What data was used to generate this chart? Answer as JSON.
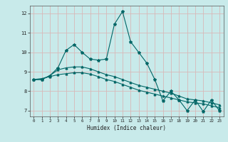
{
  "title": "",
  "xlabel": "Humidex (Indice chaleur)",
  "xlim": [
    -0.5,
    23.5
  ],
  "ylim": [
    6.7,
    12.4
  ],
  "yticks": [
    7,
    8,
    9,
    10,
    11,
    12
  ],
  "xticks": [
    0,
    1,
    2,
    3,
    4,
    5,
    6,
    7,
    8,
    9,
    10,
    11,
    12,
    13,
    14,
    15,
    16,
    17,
    18,
    19,
    20,
    21,
    22,
    23
  ],
  "background_color": "#c8eaea",
  "grid_color": "#d8b8b8",
  "line_color": "#006666",
  "line1_x": [
    0,
    1,
    2,
    3,
    4,
    5,
    6,
    7,
    8,
    9,
    10,
    11,
    12,
    13,
    14,
    15,
    16,
    17,
    18,
    19,
    20,
    21,
    22,
    23
  ],
  "line1_y": [
    8.6,
    8.6,
    8.8,
    9.2,
    10.1,
    10.4,
    10.0,
    9.65,
    9.6,
    9.65,
    11.45,
    12.1,
    10.55,
    10.0,
    9.45,
    8.6,
    7.5,
    8.0,
    7.55,
    7.0,
    7.55,
    6.95,
    7.55,
    7.0
  ],
  "line2_x": [
    0,
    1,
    2,
    3,
    4,
    5,
    6,
    7,
    8,
    9,
    10,
    11,
    12,
    13,
    14,
    15,
    16,
    17,
    18,
    19,
    20,
    21,
    22,
    23
  ],
  "line2_y": [
    8.6,
    8.6,
    8.8,
    9.1,
    9.2,
    9.25,
    9.25,
    9.15,
    9.0,
    8.85,
    8.75,
    8.6,
    8.45,
    8.3,
    8.2,
    8.1,
    8.0,
    7.9,
    7.75,
    7.6,
    7.55,
    7.5,
    7.4,
    7.3
  ],
  "line3_x": [
    0,
    1,
    2,
    3,
    4,
    5,
    6,
    7,
    8,
    9,
    10,
    11,
    12,
    13,
    14,
    15,
    16,
    17,
    18,
    19,
    20,
    21,
    22,
    23
  ],
  "line3_y": [
    8.6,
    8.65,
    8.75,
    8.85,
    8.9,
    8.95,
    8.95,
    8.88,
    8.75,
    8.6,
    8.5,
    8.35,
    8.2,
    8.05,
    7.95,
    7.85,
    7.75,
    7.65,
    7.55,
    7.45,
    7.4,
    7.35,
    7.25,
    7.15
  ]
}
